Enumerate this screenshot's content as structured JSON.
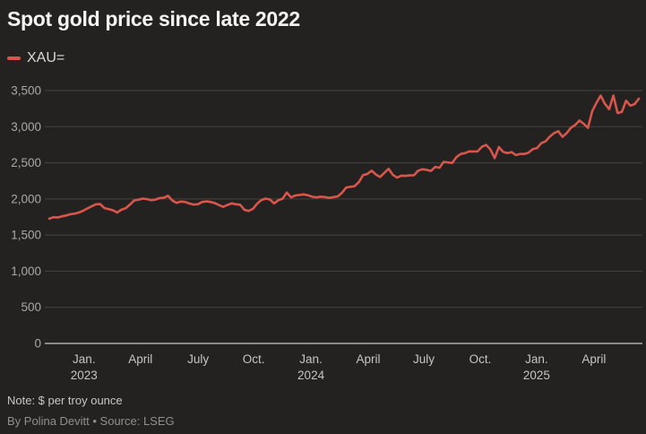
{
  "title": "Spot gold price since late 2022",
  "legend": {
    "series_label": "XAU=",
    "swatch_color": "#d8564c"
  },
  "footer": {
    "note": "Note: $ per troy ounce",
    "byline": "By Polina Devitt • Source: LSEG"
  },
  "colors": {
    "background": "#242221",
    "title_text": "#f6f4f2",
    "axis_text": "#aaa8a5",
    "gridline": "#46433f",
    "zero_axis": "#cbc9c6",
    "line": "#d8564c"
  },
  "chart_data": {
    "type": "line",
    "title": "Spot gold price since late 2022",
    "xlabel": "",
    "ylabel": "$ per troy ounce",
    "ylim": [
      0,
      3500
    ],
    "grid": true,
    "legend_position": "top-left",
    "x_range": "Nov 2022 – Jun 2025 (weekly)",
    "series": [
      {
        "name": "XAU=",
        "color": "#d8564c",
        "values": [
          1727,
          1748,
          1742,
          1760,
          1771,
          1788,
          1797,
          1812,
          1837,
          1869,
          1898,
          1926,
          1929,
          1874,
          1858,
          1843,
          1812,
          1850,
          1872,
          1920,
          1978,
          1989,
          2004,
          1998,
          1983,
          1990,
          2012,
          2016,
          2044,
          1980,
          1946,
          1963,
          1958,
          1937,
          1922,
          1926,
          1957,
          1966,
          1958,
          1943,
          1915,
          1890,
          1916,
          1939,
          1926,
          1920,
          1849,
          1834,
          1862,
          1934,
          1985,
          2004,
          1993,
          1939,
          1982,
          2003,
          2088,
          2022,
          2048,
          2055,
          2063,
          2050,
          2031,
          2022,
          2032,
          2026,
          2014,
          2025,
          2036,
          2084,
          2158,
          2168,
          2177,
          2234,
          2331,
          2346,
          2392,
          2338,
          2304,
          2362,
          2416,
          2335,
          2295,
          2322,
          2319,
          2326,
          2328,
          2392,
          2412,
          2402,
          2388,
          2444,
          2432,
          2513,
          2504,
          2498,
          2579,
          2622,
          2634,
          2659,
          2656,
          2658,
          2722,
          2748,
          2686,
          2565,
          2718,
          2651,
          2634,
          2649,
          2608,
          2623,
          2622,
          2641,
          2690,
          2704,
          2772,
          2798,
          2862,
          2910,
          2938,
          2860,
          2912,
          2986,
          3024,
          3086,
          3040,
          2984,
          3212,
          3330,
          3430,
          3318,
          3242,
          3432,
          3188,
          3206,
          3358,
          3292,
          3312,
          3388
        ]
      }
    ],
    "y_ticks": [
      {
        "label": "3,500",
        "value": 3500
      },
      {
        "label": "3,000",
        "value": 3000
      },
      {
        "label": "2,500",
        "value": 2500
      },
      {
        "label": "2,000",
        "value": 2000
      },
      {
        "label": "1,500",
        "value": 1500
      },
      {
        "label": "1,000",
        "value": 1000
      },
      {
        "label": "500",
        "value": 500
      },
      {
        "label": "0",
        "value": 0
      }
    ],
    "x_ticks": [
      {
        "label": "Jan.",
        "sublabel": "2023",
        "index": 8.2
      },
      {
        "label": "April",
        "sublabel": "",
        "index": 21.5
      },
      {
        "label": "July",
        "sublabel": "",
        "index": 35.1
      },
      {
        "label": "Oct.",
        "sublabel": "",
        "index": 48.2
      },
      {
        "label": "Jan.",
        "sublabel": "2024",
        "index": 61.7
      },
      {
        "label": "April",
        "sublabel": "",
        "index": 75.2
      },
      {
        "label": "July",
        "sublabel": "",
        "index": 88.3
      },
      {
        "label": "Oct.",
        "sublabel": "",
        "index": 101.6
      },
      {
        "label": "Jan.",
        "sublabel": "2025",
        "index": 114.9
      },
      {
        "label": "April",
        "sublabel": "",
        "index": 128.4
      }
    ]
  }
}
